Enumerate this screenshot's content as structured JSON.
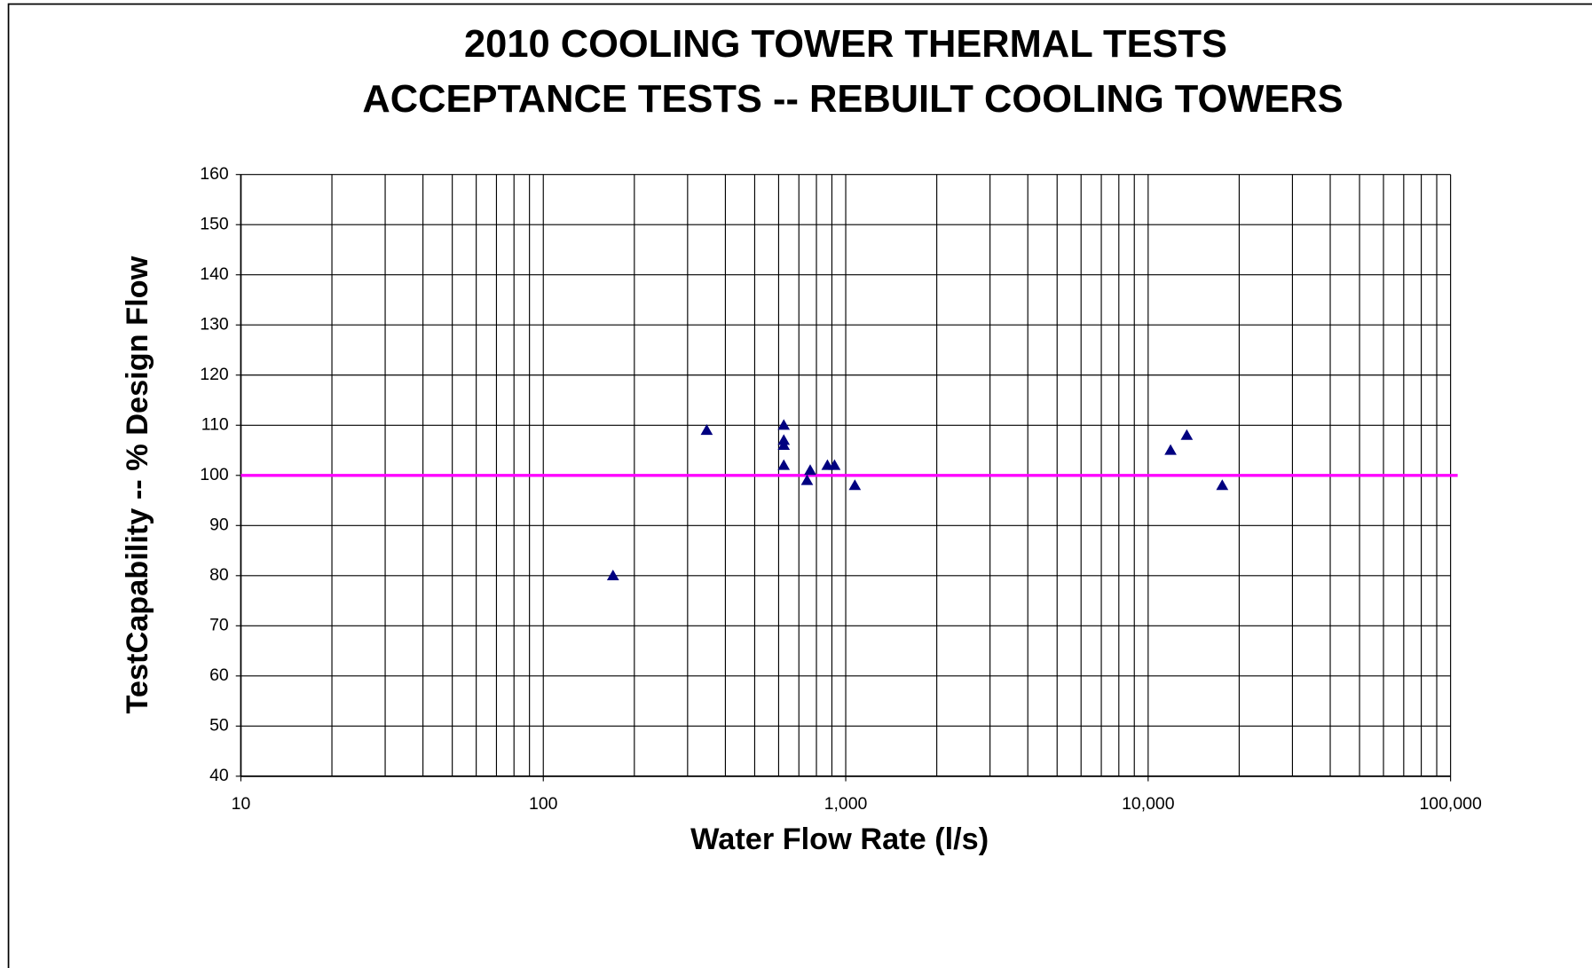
{
  "chart_data": {
    "type": "scatter",
    "title": [
      "2010 COOLING TOWER THERMAL TESTS",
      "ACCEPTANCE TESTS -- REBUILT COOLING TOWERS"
    ],
    "x_label": "Water Flow Rate (l/s)",
    "y_label": "TestCapability -- % Design Flow",
    "x_scale": "log",
    "xlim": [
      10,
      100000
    ],
    "xticks": [
      10,
      100,
      {
        "value": 1000,
        "label": "1,000"
      },
      {
        "value": 10000,
        "label": "10,000"
      },
      {
        "value": 100000,
        "label": "100,000"
      }
    ],
    "ylim": [
      40,
      160
    ],
    "yticks": [
      40,
      50,
      60,
      70,
      80,
      90,
      100,
      110,
      120,
      130,
      140,
      150,
      160
    ],
    "grid": true,
    "marker": "triangle",
    "reference_line": {
      "value": 100,
      "color": "#ff00ff"
    },
    "series": [
      {
        "color": "#000080",
        "x": [
          170,
          347,
          624,
          624,
          624,
          624,
          745,
          763,
          870,
          918,
          1072,
          11860,
          13420,
          17580
        ],
        "values": [
          80,
          109,
          110,
          107,
          106,
          102,
          99,
          101,
          102,
          102,
          98,
          105,
          108,
          98
        ]
      }
    ]
  }
}
